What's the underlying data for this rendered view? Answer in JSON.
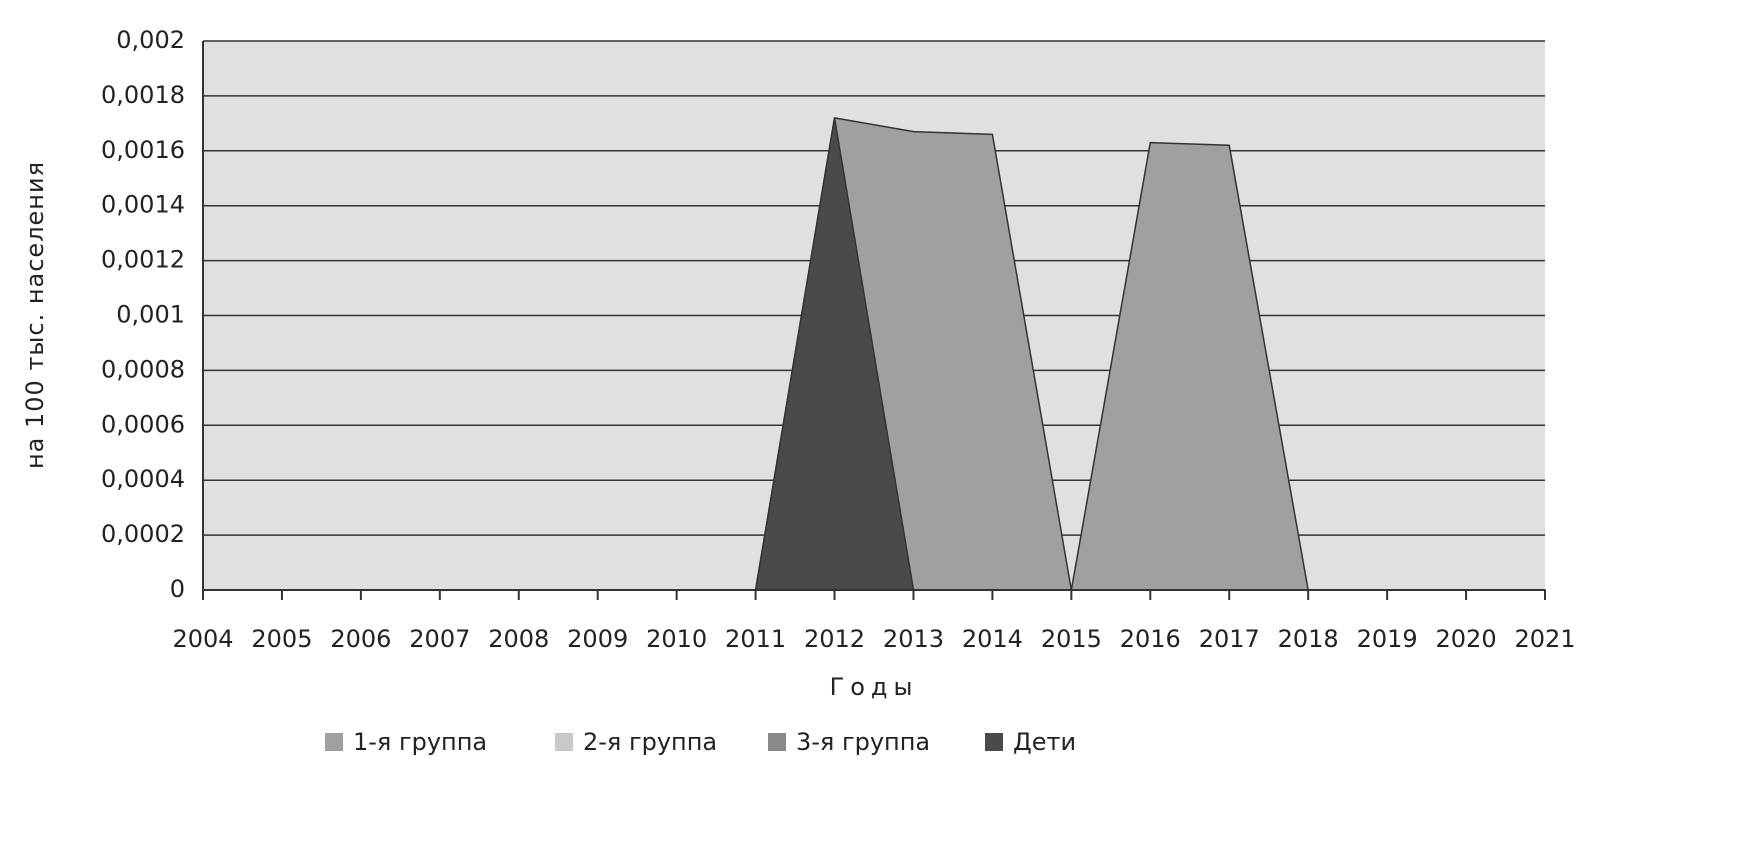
{
  "chart_data": {
    "type": "area",
    "x_label": "Годы",
    "y_label": "на 100 тыс. населения",
    "categories": [
      "2004",
      "2005",
      "2006",
      "2007",
      "2008",
      "2009",
      "2010",
      "2011",
      "2012",
      "2013",
      "2014",
      "2015",
      "2016",
      "2017",
      "2018",
      "2019",
      "2020",
      "2021"
    ],
    "series": [
      {
        "name": "1-я группа",
        "color": "#a0a0a0",
        "values": [
          0,
          0,
          0,
          0,
          0,
          0,
          0,
          0,
          0.00172,
          0.00167,
          0.00166,
          0,
          0.00163,
          0.00162,
          0,
          0,
          0,
          0
        ]
      },
      {
        "name": "2-я группа",
        "color": "#c8c8c8",
        "values": [
          0,
          0,
          0,
          0,
          0,
          0,
          0,
          0,
          0,
          0,
          0,
          0,
          0,
          0,
          0,
          0,
          0,
          0
        ]
      },
      {
        "name": "3-я группа",
        "color": "#8a8a8a",
        "values": [
          0,
          0,
          0,
          0,
          0,
          0,
          0,
          0,
          0,
          0,
          0,
          0,
          0,
          0,
          0,
          0,
          0,
          0
        ]
      },
      {
        "name": "Дети",
        "color": "#4a4a4a",
        "values": [
          0,
          0,
          0,
          0,
          0,
          0,
          0,
          0,
          0.00172,
          0,
          0,
          0,
          0,
          0,
          0,
          0,
          0,
          0
        ]
      }
    ],
    "ylim": [
      0,
      0.002
    ],
    "yticks": [
      0,
      {
        "value": 0.0002,
        "label": "0,0002"
      },
      {
        "value": 0.0004,
        "label": "0,0004"
      },
      {
        "value": 0.0006,
        "label": "0,0006"
      },
      {
        "value": 0.0008,
        "label": "0,0008"
      },
      {
        "value": 0.001,
        "label": "0,001"
      },
      {
        "value": 0.0012,
        "label": "0,0012"
      },
      {
        "value": 0.0014,
        "label": "0,0014"
      },
      {
        "value": 0.0016,
        "label": "0,0016"
      },
      {
        "value": 0.0018,
        "label": "0,0018"
      },
      {
        "value": 0.002,
        "label": "0,002"
      }
    ],
    "grid": true,
    "legend": "bottom"
  }
}
